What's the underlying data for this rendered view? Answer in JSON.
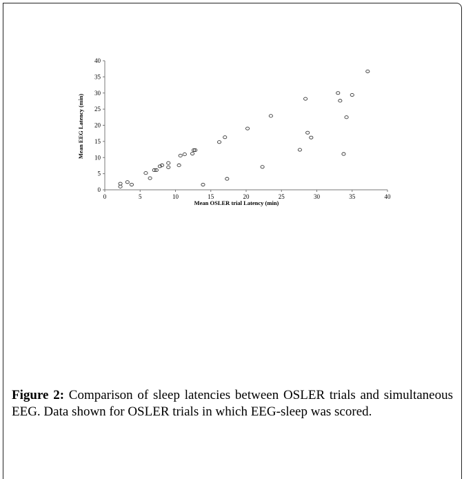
{
  "figure": {
    "caption_label": "Figure 2:",
    "caption_text": " Comparison of sleep latencies between OSLER trials and simultaneous EEG. Data shown for OSLER trials in which EEG-sleep was scored."
  },
  "chart_data": {
    "type": "scatter",
    "title": "",
    "xlabel": "Mean OSLER trial Latency (min)",
    "ylabel": "Mean EEG Latency (min)",
    "xlim": [
      0,
      40
    ],
    "ylim": [
      0,
      40
    ],
    "xticks": [
      0,
      5,
      10,
      15,
      20,
      25,
      30,
      35,
      40
    ],
    "yticks": [
      0,
      5,
      10,
      15,
      20,
      25,
      30,
      35,
      40
    ],
    "grid": false,
    "marker": "open-circle",
    "points": [
      {
        "x": 2.2,
        "y": 1.9
      },
      {
        "x": 2.2,
        "y": 1.0
      },
      {
        "x": 3.2,
        "y": 2.4
      },
      {
        "x": 3.8,
        "y": 1.6
      },
      {
        "x": 5.8,
        "y": 5.2
      },
      {
        "x": 6.4,
        "y": 3.6
      },
      {
        "x": 7.0,
        "y": 6.1
      },
      {
        "x": 7.3,
        "y": 6.1
      },
      {
        "x": 7.8,
        "y": 7.3
      },
      {
        "x": 8.1,
        "y": 7.6
      },
      {
        "x": 9.0,
        "y": 8.3
      },
      {
        "x": 9.0,
        "y": 7.0
      },
      {
        "x": 10.5,
        "y": 7.6
      },
      {
        "x": 10.7,
        "y": 10.6
      },
      {
        "x": 11.3,
        "y": 11.0
      },
      {
        "x": 12.4,
        "y": 11.2
      },
      {
        "x": 12.6,
        "y": 12.3
      },
      {
        "x": 12.8,
        "y": 12.3
      },
      {
        "x": 13.9,
        "y": 1.6
      },
      {
        "x": 16.2,
        "y": 14.8
      },
      {
        "x": 17.0,
        "y": 16.3
      },
      {
        "x": 17.3,
        "y": 3.4
      },
      {
        "x": 20.2,
        "y": 19.0
      },
      {
        "x": 22.3,
        "y": 7.1
      },
      {
        "x": 23.5,
        "y": 22.9
      },
      {
        "x": 27.6,
        "y": 12.4
      },
      {
        "x": 28.4,
        "y": 28.2
      },
      {
        "x": 28.7,
        "y": 17.7
      },
      {
        "x": 29.2,
        "y": 16.2
      },
      {
        "x": 33.0,
        "y": 30.0
      },
      {
        "x": 33.3,
        "y": 27.6
      },
      {
        "x": 33.8,
        "y": 11.1
      },
      {
        "x": 34.2,
        "y": 22.5
      },
      {
        "x": 35.0,
        "y": 29.4
      },
      {
        "x": 37.2,
        "y": 36.7
      }
    ]
  }
}
